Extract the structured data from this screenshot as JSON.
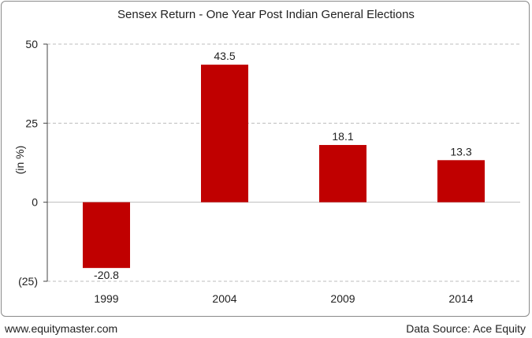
{
  "chart_data": {
    "type": "bar",
    "title": "Sensex Return - One Year Post Indian General Elections",
    "xlabel": "",
    "ylabel": "(in %)",
    "categories": [
      "1999",
      "2004",
      "2009",
      "2014"
    ],
    "values": [
      -20.8,
      43.5,
      18.1,
      13.3
    ],
    "data_labels": [
      "-20.8",
      "43.5",
      "18.1",
      "13.3"
    ],
    "y_ticks": [
      50,
      25,
      0,
      -25
    ],
    "y_tick_labels": [
      "50",
      "25",
      "0",
      "(25)"
    ],
    "ylim": [
      -25,
      50
    ],
    "grid": true,
    "bar_color": "#c00000",
    "grid_color": "#bdbdbd"
  },
  "footer": {
    "website": "www.equitymaster.com",
    "source": "Data Source: Ace Equity"
  }
}
